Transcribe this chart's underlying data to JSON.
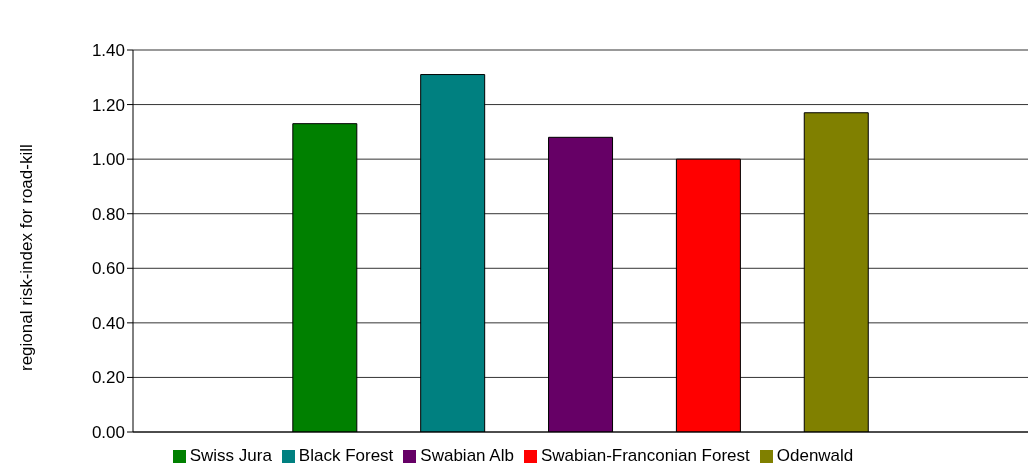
{
  "chart_data": {
    "type": "bar",
    "ylabel": "regional risk-index for road-kill",
    "categories": [
      null,
      null,
      null,
      null,
      null,
      null,
      null
    ],
    "stacked": true,
    "series": [
      {
        "name": "Swiss Jura",
        "color": "#008000",
        "values": [
          null,
          1.13,
          null,
          null,
          null,
          null,
          null
        ]
      },
      {
        "name": "Black Forest",
        "color": "#008080",
        "values": [
          null,
          null,
          1.31,
          null,
          null,
          null,
          null
        ]
      },
      {
        "name": "Swabian Alb",
        "color": "#660066",
        "values": [
          null,
          null,
          null,
          1.08,
          null,
          null,
          null
        ]
      },
      {
        "name": "Swabian-Franconian Forest",
        "color": "#ff0000",
        "values": [
          null,
          null,
          null,
          null,
          1.0,
          null,
          null
        ]
      },
      {
        "name": "Odenwald",
        "color": "#808000",
        "values": [
          null,
          null,
          null,
          null,
          null,
          1.17,
          null
        ]
      }
    ],
    "ylim": [
      0,
      1.4
    ],
    "yticks": [
      {
        "value": 0,
        "label": "0.00"
      },
      {
        "value": 0.2,
        "label": "0.20"
      },
      {
        "value": 0.4,
        "label": "0.40"
      },
      {
        "value": 0.6,
        "label": "0.60"
      },
      {
        "value": 0.8,
        "label": "0.80"
      },
      {
        "value": 1,
        "label": "1.00"
      },
      {
        "value": 1.2,
        "label": "1.20"
      },
      {
        "value": 1.4,
        "label": "1.40"
      }
    ],
    "grid": "y",
    "legend": "bottom",
    "tick_labels": "y"
  }
}
